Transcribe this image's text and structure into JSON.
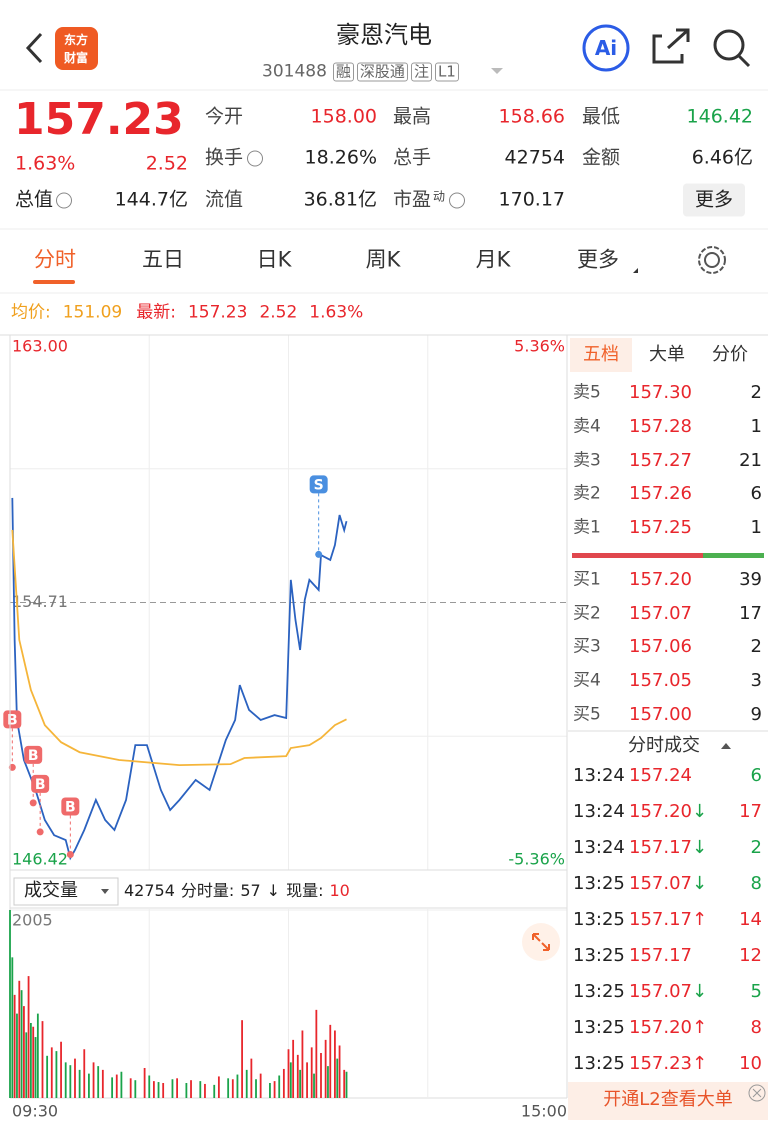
{
  "header": {
    "logo": [
      "东方",
      "财富"
    ],
    "title": "豪恩汽电",
    "code": "301488",
    "tags": [
      "融",
      "深股通",
      "注",
      "L1"
    ],
    "ai_label": "Ai"
  },
  "quote": {
    "price": "157.23",
    "change_pct": "1.63%",
    "change": "2.52",
    "total_value": {
      "label": "总值",
      "value": "144.7亿"
    },
    "stats": [
      {
        "label": "今开",
        "value": "158.00",
        "color": "#e8262c"
      },
      {
        "label": "最高",
        "value": "158.66",
        "color": "#e8262c"
      },
      {
        "label": "最低",
        "value": "146.42",
        "color": "#1aa34a"
      },
      {
        "label": "换手",
        "value": "18.26%"
      },
      {
        "label": "总手",
        "value": "42754"
      },
      {
        "label": "金额",
        "value": "6.46亿"
      },
      {
        "label": "流值",
        "value": "36.81亿"
      },
      {
        "label": "市盈",
        "sup": "动",
        "value": "170.17"
      }
    ],
    "more": "更多"
  },
  "tabs": [
    "分时",
    "五日",
    "日K",
    "周K",
    "月K",
    "更多"
  ],
  "info_bar": {
    "avg_label": "均价:",
    "avg": "151.09",
    "latest_label": "最新:",
    "latest": "157.23",
    "change": "2.52",
    "change_pct": "1.63%"
  },
  "volume_info": {
    "selector": "成交量",
    "total": "42754",
    "minute_label": "分时量:",
    "minute": "57",
    "arrow": "↓",
    "current_label": "现量:",
    "current": "10"
  },
  "chart_data": [
    {
      "type": "line",
      "ylim": [
        146.42,
        163
      ],
      "yticks": [
        {
          "value": 163,
          "label": "163.00"
        },
        {
          "value": 154.71,
          "label": "154.71"
        },
        {
          "value": 146.42,
          "label": "146.42"
        }
      ],
      "y2lim": [
        -5.36,
        5.36
      ],
      "y2ticks": [
        {
          "value": 5.36,
          "label": "5.36%"
        },
        {
          "value": -5.36,
          "label": "-5.36%"
        }
      ],
      "xlim": [
        0,
        240
      ],
      "xgrid": [
        60,
        120,
        180
      ],
      "ygrid": [
        158.855,
        150.565
      ],
      "series": [
        {
          "color": "#2b62c0",
          "x": [
            1,
            2,
            3,
            6,
            11,
            15,
            19,
            24,
            26,
            28,
            32,
            37,
            41,
            45,
            50,
            54,
            59,
            65,
            69,
            73,
            80,
            86,
            93,
            97,
            99,
            103,
            108,
            114,
            119,
            121,
            123,
            125,
            127,
            129,
            133,
            134,
            138,
            140,
            142,
            144,
            145
          ],
          "values": [
            157.95,
            153.55,
            151.07,
            149.83,
            148.9,
            147.97,
            147.5,
            147.35,
            146.79,
            147.04,
            147.66,
            148.59,
            147.97,
            147.66,
            148.59,
            150.29,
            150.29,
            148.9,
            148.28,
            148.59,
            149.21,
            148.9,
            150.45,
            151.07,
            152.15,
            151.38,
            151.07,
            151.22,
            151.13,
            155.41,
            154.17,
            153.24,
            154.79,
            155.41,
            155.1,
            156.18,
            156.03,
            156.49,
            157.42,
            156.95,
            157.23
          ]
        },
        {
          "color": "#f5b53a",
          "x": [
            1,
            4,
            9,
            15,
            22,
            30,
            47,
            73,
            95,
            101,
            119,
            121,
            129,
            134,
            140,
            145
          ],
          "values": [
            156.96,
            153.55,
            152.0,
            150.91,
            150.38,
            150.07,
            149.83,
            149.67,
            149.7,
            149.89,
            149.95,
            150.2,
            150.29,
            150.51,
            150.91,
            151.09
          ]
        }
      ],
      "markers": [
        {
          "label": "B",
          "x": 1,
          "y": 149.6
        },
        {
          "label": "B",
          "x": 10,
          "y": 148.5
        },
        {
          "label": "B",
          "x": 13,
          "y": 147.6
        },
        {
          "label": "B",
          "x": 26,
          "y": 146.9
        },
        {
          "label": "S",
          "x": 133,
          "y": 156.2
        }
      ]
    },
    {
      "type": "bar",
      "ylim": [
        0,
        2005
      ],
      "yticks": [
        2005
      ],
      "xlim": [
        0,
        240
      ],
      "xticks": [
        {
          "value": 0,
          "label": "09:30"
        },
        {
          "value": 240,
          "label": "15:00"
        }
      ],
      "xgrid": [
        60,
        120,
        180
      ],
      "series": [
        {
          "color": "#e8262c",
          "x": [
            2,
            4,
            6,
            8,
            10,
            14,
            18,
            22,
            28,
            32,
            36,
            40,
            46,
            52,
            58,
            62,
            66,
            72,
            78,
            84,
            90,
            96,
            100,
            104,
            108,
            114,
            118,
            120,
            122,
            124,
            126,
            128,
            130,
            132,
            134,
            136,
            138,
            140,
            142,
            144
          ],
          "values": [
            1100,
            1250,
            980,
            1300,
            760,
            820,
            540,
            600,
            420,
            520,
            380,
            300,
            250,
            210,
            320,
            180,
            160,
            210,
            190,
            150,
            230,
            200,
            830,
            420,
            260,
            180,
            310,
            520,
            620,
            460,
            720,
            380,
            540,
            940,
            480,
            620,
            780,
            720,
            560,
            300
          ]
        },
        {
          "color": "#1aa34a",
          "x": [
            0,
            1,
            3,
            5,
            7,
            9,
            11,
            12,
            16,
            20,
            24,
            26,
            30,
            34,
            38,
            44,
            48,
            54,
            60,
            64,
            70,
            76,
            82,
            88,
            94,
            98,
            102,
            106,
            112,
            116,
            121,
            125,
            131,
            137,
            141,
            145
          ],
          "values": [
            2005,
            1500,
            900,
            1150,
            700,
            800,
            650,
            900,
            450,
            500,
            380,
            350,
            300,
            260,
            340,
            220,
            280,
            190,
            240,
            170,
            200,
            160,
            180,
            140,
            210,
            250,
            300,
            200,
            160,
            240,
            380,
            300,
            260,
            340,
            420,
            280
          ]
        }
      ]
    }
  ],
  "order_book": {
    "tabs": [
      "五档",
      "大单",
      "分价"
    ],
    "asks": [
      {
        "label": "卖5",
        "price": "157.30",
        "qty": 2
      },
      {
        "label": "卖4",
        "price": "157.28",
        "qty": 1
      },
      {
        "label": "卖3",
        "price": "157.27",
        "qty": 21
      },
      {
        "label": "卖2",
        "price": "157.26",
        "qty": 6
      },
      {
        "label": "卖1",
        "price": "157.25",
        "qty": 1
      }
    ],
    "bids": [
      {
        "label": "买1",
        "price": "157.20",
        "qty": 39
      },
      {
        "label": "买2",
        "price": "157.07",
        "qty": 17
      },
      {
        "label": "买3",
        "price": "157.06",
        "qty": 2
      },
      {
        "label": "买4",
        "price": "157.05",
        "qty": 3
      },
      {
        "label": "买5",
        "price": "157.00",
        "qty": 9
      }
    ],
    "trades_title": "分时成交",
    "trades": [
      {
        "time": "13:24",
        "price": "157.24",
        "qty": 6,
        "color": "#1aa34a"
      },
      {
        "time": "13:24",
        "price": "157.20",
        "arrow": "↓",
        "qty": 17,
        "color": "#e8262c"
      },
      {
        "time": "13:24",
        "price": "157.17",
        "arrow": "↓",
        "qty": 2,
        "color": "#1aa34a"
      },
      {
        "time": "13:25",
        "price": "157.07",
        "arrow": "↓",
        "qty": 8,
        "color": "#1aa34a"
      },
      {
        "time": "13:25",
        "price": "157.17",
        "arrow": "↑",
        "qty": 14,
        "color": "#e8262c"
      },
      {
        "time": "13:25",
        "price": "157.17",
        "qty": 12,
        "color": "#e8262c"
      },
      {
        "time": "13:25",
        "price": "157.07",
        "arrow": "↓",
        "qty": 5,
        "color": "#1aa34a"
      },
      {
        "time": "13:25",
        "price": "157.20",
        "arrow": "↑",
        "qty": 8,
        "color": "#e8262c"
      },
      {
        "time": "13:25",
        "price": "157.23",
        "arrow": "↑",
        "qty": 10,
        "color": "#e8262c"
      }
    ],
    "footer": "开通L2查看大单"
  }
}
